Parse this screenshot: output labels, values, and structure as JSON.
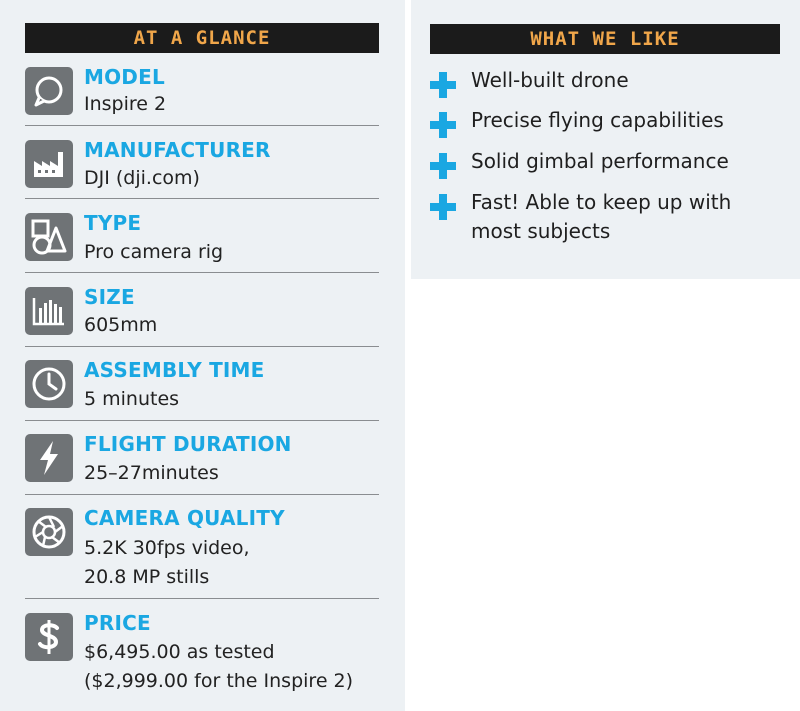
{
  "at_a_glance": {
    "header": "AT A GLANCE",
    "specs": [
      {
        "icon": "speech-bubble-icon",
        "label": "MODEL",
        "lines": [
          "Inspire 2"
        ]
      },
      {
        "icon": "factory-icon",
        "label": "MANUFACTURER",
        "lines": [
          "DJI (dji.com)"
        ]
      },
      {
        "icon": "shapes-icon",
        "label": "TYPE",
        "lines": [
          "Pro camera rig"
        ]
      },
      {
        "icon": "bars-icon",
        "label": "SIZE",
        "lines": [
          "605mm"
        ]
      },
      {
        "icon": "clock-icon",
        "label": "ASSEMBLY TIME",
        "lines": [
          "5 minutes"
        ]
      },
      {
        "icon": "lightning-icon",
        "label": "FLIGHT DURATION",
        "lines": [
          "25–27minutes"
        ]
      },
      {
        "icon": "aperture-icon",
        "label": "CAMERA QUALITY",
        "lines": [
          "5.2K 30fps video,",
          "20.8 MP stills"
        ]
      },
      {
        "icon": "dollar-icon",
        "label": "PRICE",
        "lines": [
          "$6,495.00 as tested",
          "($2,999.00 for the Inspire 2)"
        ]
      }
    ]
  },
  "what_we_like": {
    "header": "WHAT WE LIKE",
    "items": [
      {
        "lines": [
          "Well-built drone"
        ]
      },
      {
        "lines": [
          "Precise flying capabilities"
        ]
      },
      {
        "lines": [
          "Solid gimbal performance"
        ]
      },
      {
        "lines": [
          "Fast! Able to keep up with",
          "most subjects"
        ]
      }
    ]
  },
  "colors": {
    "panel_bg": "#edf1f4",
    "header_bg": "#1b1b1b",
    "header_text": "#f0a64a",
    "label_blue": "#1aa7e2",
    "icon_gray": "#6f7376"
  }
}
